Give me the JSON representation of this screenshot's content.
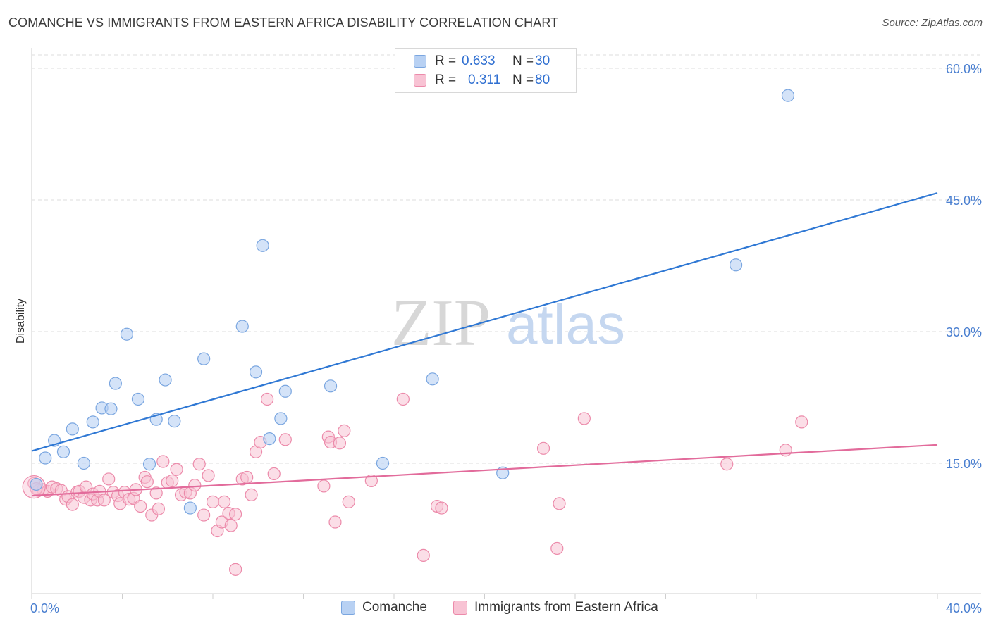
{
  "title": "COMANCHE VS IMMIGRANTS FROM EASTERN AFRICA DISABILITY CORRELATION CHART",
  "source": "Source: ZipAtlas.com",
  "watermark": {
    "zip": "ZIP",
    "atlas": "atlas"
  },
  "legend": {
    "rows": [
      {
        "r_label": "R =",
        "r_value": "0.633",
        "n_label": "N =",
        "n_value": "30"
      },
      {
        "r_label": "R =",
        "r_value": "0.311",
        "n_label": "N =",
        "n_value": "80"
      }
    ]
  },
  "bottom_legend": {
    "comanche": "Comanche",
    "immigrants": "Immigrants from Eastern Africa"
  },
  "colors": {
    "comanche_fill": "#b8d1f3",
    "comanche_stroke": "#7aa6e0",
    "comanche_line": "#2f78d4",
    "immigrants_fill": "#f8c3d4",
    "immigrants_stroke": "#ec8aaa",
    "immigrants_line": "#e26b9b",
    "tick_text": "#4a7fd0",
    "grid": "#dedede"
  },
  "chart_data": {
    "type": "scatter",
    "title": "COMANCHE VS IMMIGRANTS FROM EASTERN AFRICA DISABILITY CORRELATION CHART",
    "xlabel": "",
    "ylabel": "Disability",
    "xlim": [
      0,
      40
    ],
    "ylim": [
      0,
      60
    ],
    "x_tick_labels": [
      "0.0%",
      "40.0%"
    ],
    "y_ticks": [
      15,
      30,
      45,
      60
    ],
    "y_tick_labels": [
      "15.0%",
      "30.0%",
      "45.0%",
      "60.0%"
    ],
    "grid": true,
    "legend_position": "top-center",
    "series": [
      {
        "name": "Comanche",
        "r": 0.633,
        "n": 30,
        "trend": [
          [
            0,
            16.4
          ],
          [
            40,
            45.8
          ]
        ],
        "points": [
          [
            0.2,
            12.6
          ],
          [
            0.6,
            15.6
          ],
          [
            1.0,
            17.6
          ],
          [
            1.4,
            16.3
          ],
          [
            1.8,
            18.9
          ],
          [
            2.3,
            15.0
          ],
          [
            2.7,
            19.7
          ],
          [
            3.1,
            21.3
          ],
          [
            3.5,
            21.2
          ],
          [
            3.7,
            24.1
          ],
          [
            4.2,
            29.7
          ],
          [
            4.7,
            22.3
          ],
          [
            5.2,
            14.9
          ],
          [
            5.5,
            20.0
          ],
          [
            5.9,
            24.5
          ],
          [
            6.3,
            19.8
          ],
          [
            7.0,
            9.9
          ],
          [
            7.6,
            26.9
          ],
          [
            9.3,
            30.6
          ],
          [
            9.9,
            25.4
          ],
          [
            10.2,
            39.8
          ],
          [
            10.5,
            17.8
          ],
          [
            11.0,
            20.1
          ],
          [
            11.2,
            23.2
          ],
          [
            13.2,
            23.8
          ],
          [
            15.5,
            15.0
          ],
          [
            17.7,
            24.6
          ],
          [
            20.8,
            13.9
          ],
          [
            31.1,
            37.6
          ],
          [
            33.4,
            56.9
          ]
        ]
      },
      {
        "name": "Immigrants from Eastern Africa",
        "r": 0.311,
        "n": 80,
        "trend": [
          [
            0,
            11.3
          ],
          [
            40,
            17.1
          ]
        ],
        "points": [
          [
            0.1,
            12.7
          ],
          [
            0.3,
            11.9
          ],
          [
            0.5,
            12.0
          ],
          [
            0.7,
            11.8
          ],
          [
            0.9,
            12.3
          ],
          [
            1.1,
            12.1
          ],
          [
            1.3,
            11.9
          ],
          [
            1.5,
            10.9
          ],
          [
            1.6,
            11.2
          ],
          [
            1.8,
            10.3
          ],
          [
            2.0,
            11.7
          ],
          [
            2.1,
            11.8
          ],
          [
            2.3,
            11.1
          ],
          [
            2.4,
            12.3
          ],
          [
            2.6,
            10.8
          ],
          [
            2.7,
            11.5
          ],
          [
            2.9,
            10.8
          ],
          [
            3.0,
            11.8
          ],
          [
            3.2,
            10.8
          ],
          [
            3.4,
            13.2
          ],
          [
            3.6,
            11.7
          ],
          [
            3.8,
            11.3
          ],
          [
            3.9,
            10.4
          ],
          [
            4.1,
            11.7
          ],
          [
            4.3,
            10.9
          ],
          [
            4.5,
            11.0
          ],
          [
            4.6,
            12.0
          ],
          [
            4.8,
            10.1
          ],
          [
            5.0,
            13.4
          ],
          [
            5.1,
            12.9
          ],
          [
            5.3,
            9.1
          ],
          [
            5.5,
            11.6
          ],
          [
            5.6,
            9.8
          ],
          [
            5.8,
            15.2
          ],
          [
            6.0,
            12.8
          ],
          [
            6.2,
            13.0
          ],
          [
            6.4,
            14.3
          ],
          [
            6.6,
            11.4
          ],
          [
            6.8,
            11.7
          ],
          [
            7.0,
            11.6
          ],
          [
            7.2,
            12.5
          ],
          [
            7.4,
            14.9
          ],
          [
            7.6,
            9.1
          ],
          [
            7.8,
            13.6
          ],
          [
            8.0,
            10.6
          ],
          [
            8.2,
            7.3
          ],
          [
            8.4,
            8.3
          ],
          [
            8.5,
            10.6
          ],
          [
            8.7,
            9.3
          ],
          [
            8.8,
            7.9
          ],
          [
            9.0,
            9.2
          ],
          [
            9.3,
            13.2
          ],
          [
            9.5,
            13.4
          ],
          [
            9.7,
            11.4
          ],
          [
            9.9,
            16.3
          ],
          [
            10.1,
            17.4
          ],
          [
            10.4,
            22.3
          ],
          [
            10.7,
            13.8
          ],
          [
            11.2,
            17.7
          ],
          [
            12.9,
            12.4
          ],
          [
            13.1,
            18.0
          ],
          [
            13.2,
            17.4
          ],
          [
            13.4,
            8.3
          ],
          [
            13.6,
            17.3
          ],
          [
            13.8,
            18.7
          ],
          [
            14.0,
            10.6
          ],
          [
            15.0,
            13.0
          ],
          [
            16.4,
            22.3
          ],
          [
            17.3,
            4.5
          ],
          [
            17.9,
            10.1
          ],
          [
            18.1,
            9.9
          ],
          [
            22.6,
            16.7
          ],
          [
            23.2,
            5.3
          ],
          [
            23.3,
            10.4
          ],
          [
            24.4,
            20.1
          ],
          [
            30.7,
            14.9
          ],
          [
            33.3,
            16.5
          ],
          [
            34.0,
            19.7
          ],
          [
            0.2,
            12.1
          ],
          [
            9.0,
            2.9
          ]
        ]
      }
    ]
  }
}
